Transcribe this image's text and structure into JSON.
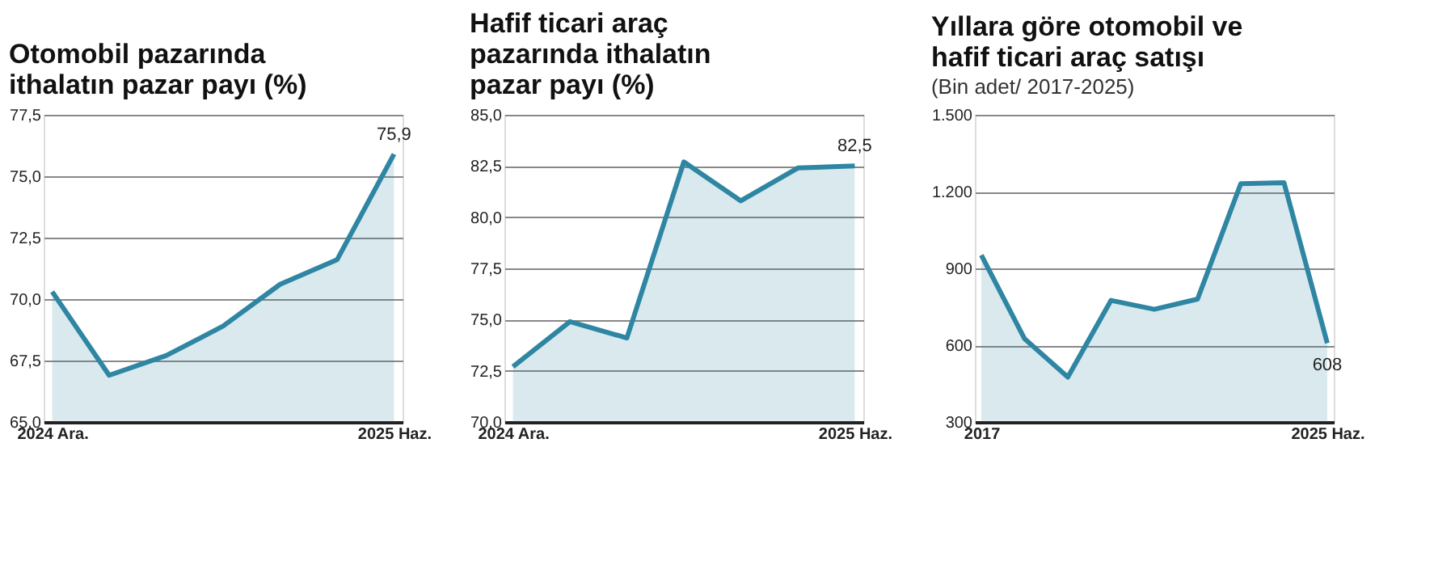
{
  "chart_data": [
    {
      "type": "area",
      "title": "Otomobil pazarında ithalatın pazar payı (%)",
      "categories": [
        "2024 Ara.",
        null,
        null,
        null,
        null,
        null,
        "2025 Haz."
      ],
      "values": [
        70.3,
        66.9,
        67.7,
        68.9,
        70.6,
        71.6,
        75.9
      ],
      "value_labels": [
        null,
        null,
        null,
        null,
        null,
        null,
        "75,9"
      ],
      "color": "#2e86a3",
      "ylim": [
        65,
        77.5
      ],
      "yticks": [
        {
          "value": 65,
          "label": "65,0"
        },
        {
          "value": 67.5,
          "label": "67,5"
        },
        {
          "value": 70,
          "label": "70,0"
        },
        {
          "value": 72.5,
          "label": "72,5"
        },
        {
          "value": 75,
          "label": "75,0"
        },
        {
          "value": 77.5,
          "label": "77,5"
        }
      ],
      "grid": "y"
    },
    {
      "type": "area",
      "title": "Hafif ticari araç pazarında ithalatın pazar payı (%)",
      "categories": [
        "2024 Ara.",
        null,
        null,
        null,
        null,
        null,
        "2025 Haz."
      ],
      "values": [
        72.7,
        74.9,
        74.1,
        82.7,
        80.8,
        82.4,
        82.5
      ],
      "value_labels": [
        null,
        null,
        null,
        null,
        null,
        null,
        "82,5"
      ],
      "color": "#2e86a3",
      "ylim": [
        70,
        85
      ],
      "yticks": [
        {
          "value": 70,
          "label": "70,0"
        },
        {
          "value": 72.5,
          "label": "72,5"
        },
        {
          "value": 75,
          "label": "75,0"
        },
        {
          "value": 77.5,
          "label": "77,5"
        },
        {
          "value": 80,
          "label": "80,0"
        },
        {
          "value": 82.5,
          "label": "82,5"
        },
        {
          "value": 85,
          "label": "85,0"
        }
      ],
      "grid": "y"
    },
    {
      "type": "area",
      "title": "Yıllara göre otomobil ve hafif ticari araç satışı",
      "subtitle": "(Bin adet/ 2017-2025)",
      "categories": [
        "2017",
        null,
        null,
        null,
        null,
        null,
        null,
        null,
        "2025 Haz."
      ],
      "values": [
        952,
        625,
        475,
        775,
        740,
        780,
        1231,
        1235,
        608
      ],
      "value_labels": [
        null,
        null,
        null,
        null,
        null,
        null,
        null,
        null,
        "608"
      ],
      "color": "#2e86a3",
      "ylim": [
        300,
        1500
      ],
      "yticks": [
        300,
        600,
        900,
        {
          "value": 1200,
          "label": "1.200"
        },
        {
          "value": 1500,
          "label": "1.500"
        }
      ],
      "grid": "y"
    }
  ]
}
